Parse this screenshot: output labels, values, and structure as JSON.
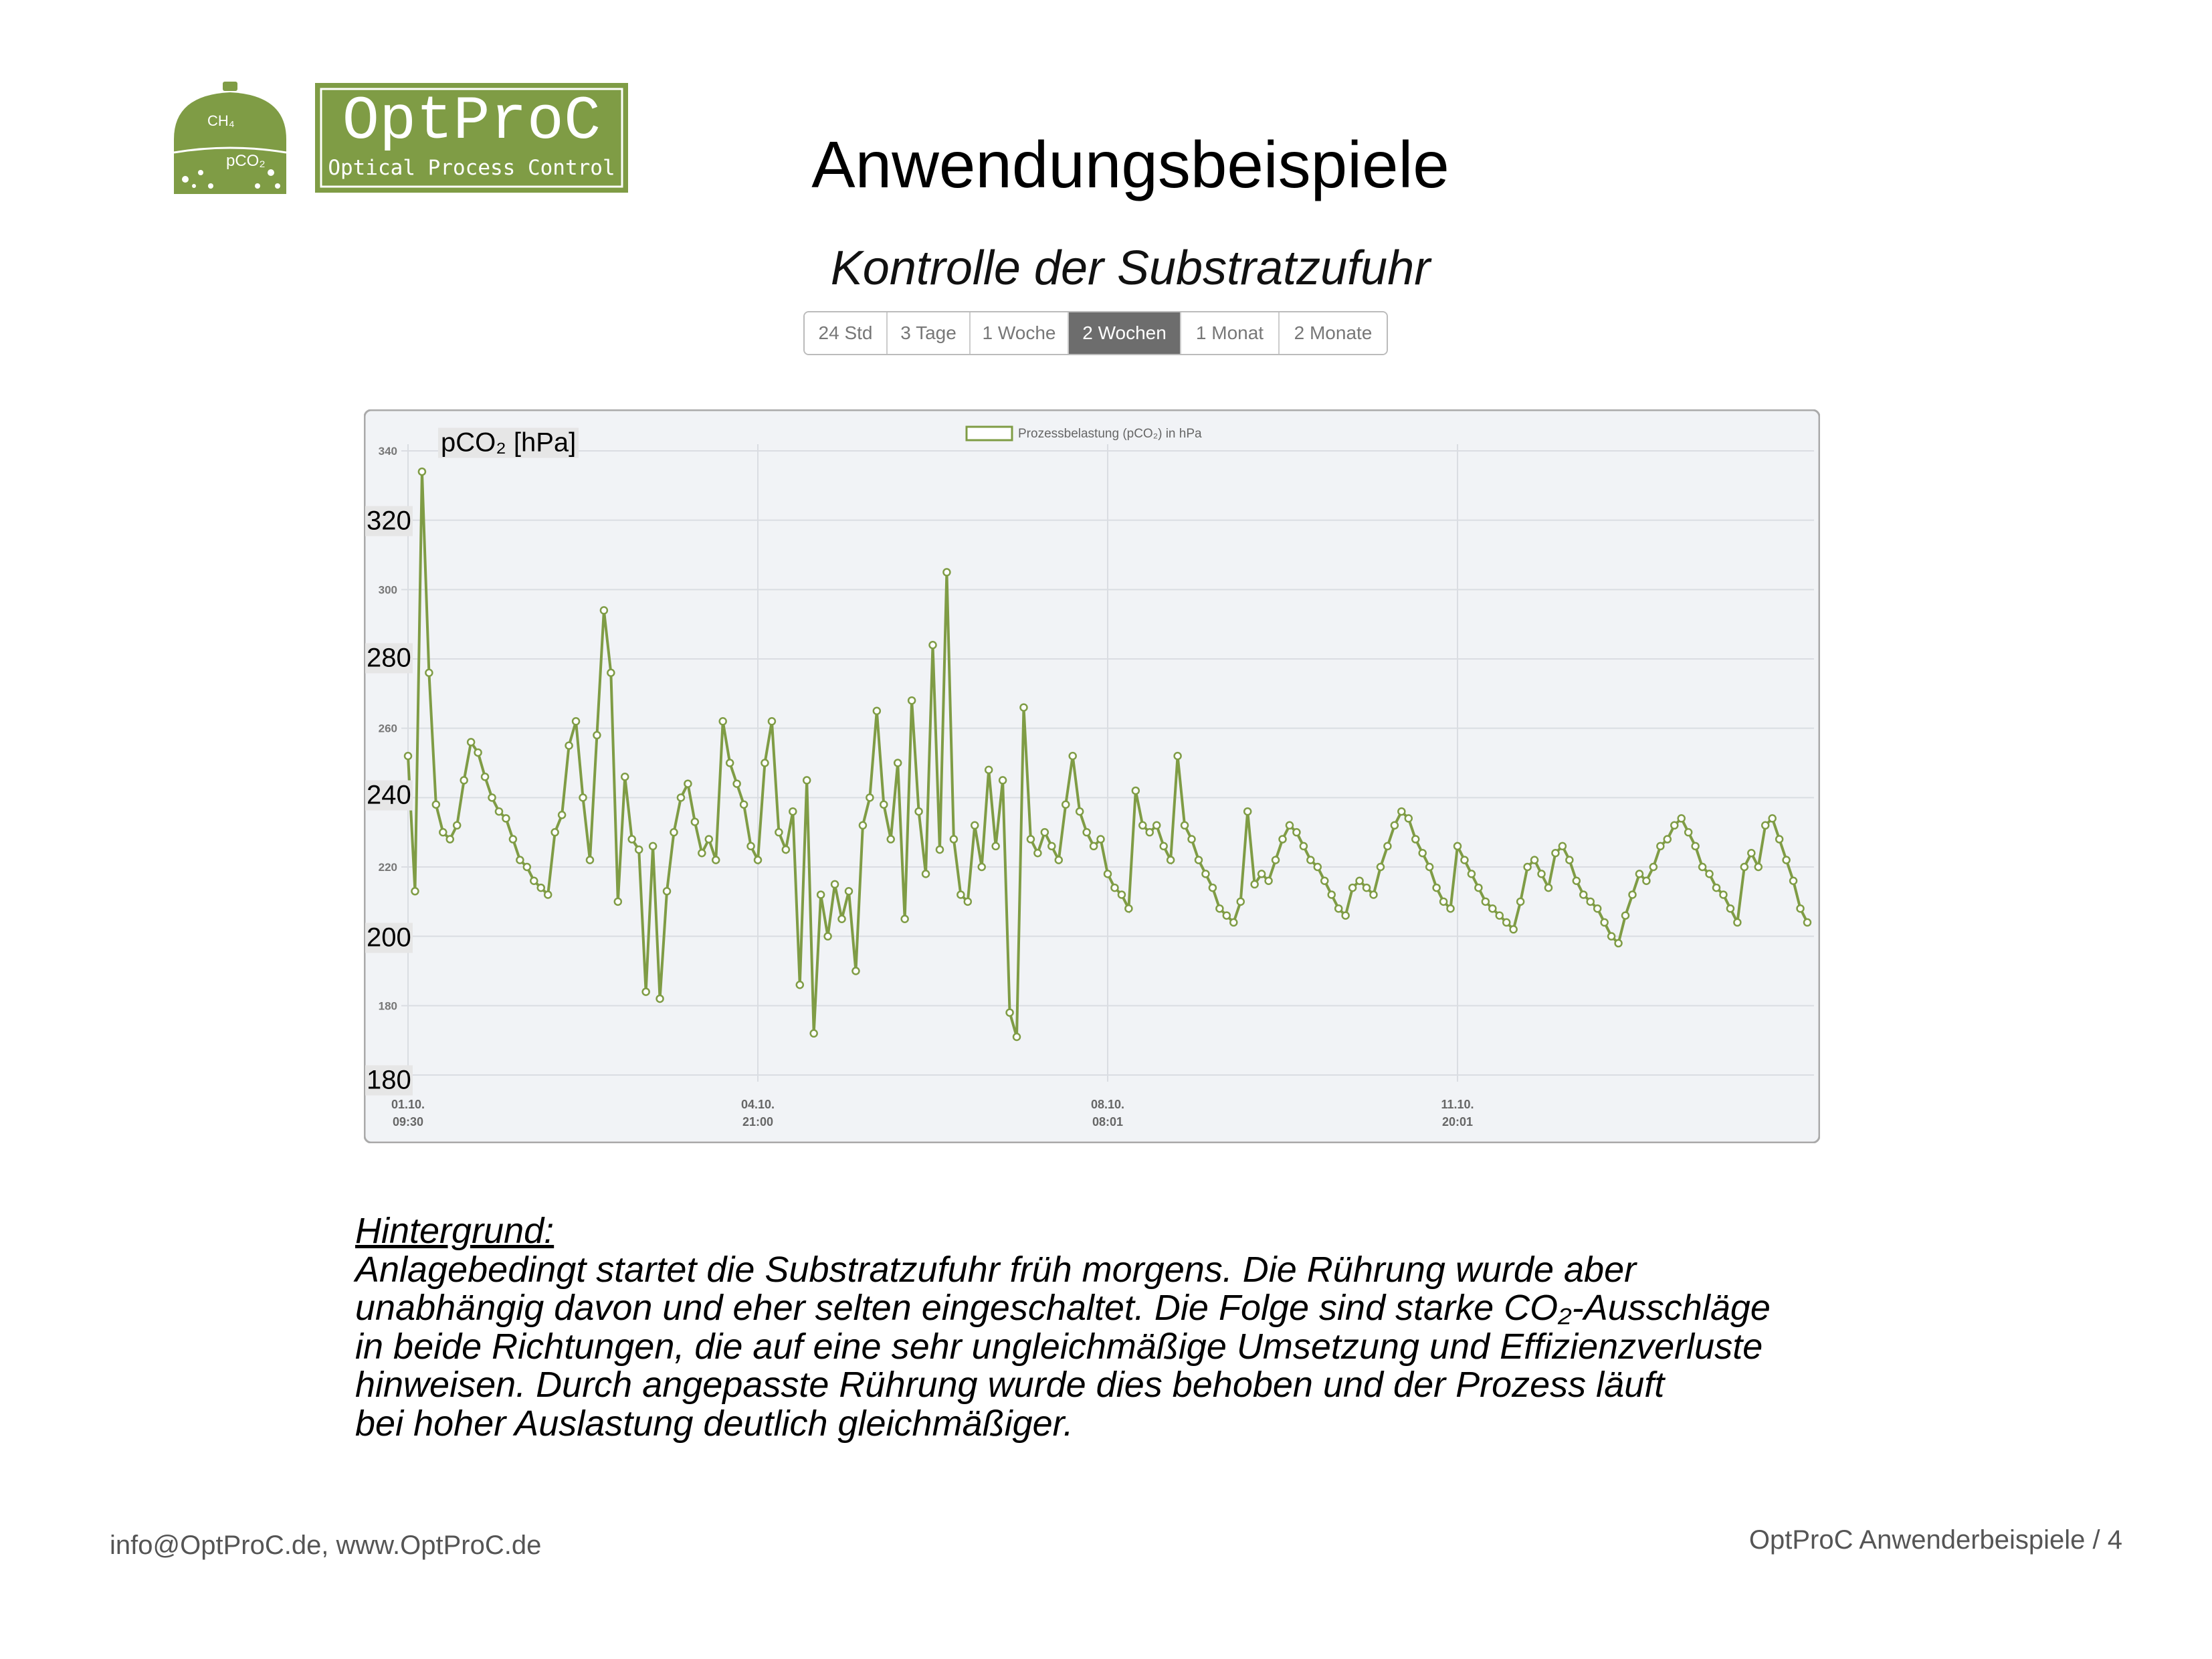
{
  "logo": {
    "tank_labels": [
      "CH₄",
      "pCO₂"
    ],
    "name": "OptProC",
    "tagline": "Optical Process Control"
  },
  "header": {
    "title": "Anwendungsbeispiele",
    "subtitle": "Kontrolle der Substratzufuhr"
  },
  "range_buttons": {
    "options": [
      "24 Std",
      "3 Tage",
      "1 Woche",
      "2 Wochen",
      "1 Monat",
      "2 Monate"
    ],
    "active_index": 3
  },
  "chart_data": {
    "type": "line",
    "y_label": "pCO₂ [hPa]",
    "overlay_ylabels": [
      "320",
      "280",
      "240",
      "200",
      "180"
    ],
    "series": [
      {
        "name": "Prozessbelastung (pCO₂) in hPa",
        "color": "#7f9c45",
        "values": [
          252,
          213,
          334,
          276,
          238,
          230,
          228,
          232,
          245,
          256,
          253,
          246,
          240,
          236,
          234,
          228,
          222,
          220,
          216,
          214,
          212,
          230,
          235,
          255,
          262,
          240,
          222,
          258,
          294,
          276,
          210,
          246,
          228,
          225,
          184,
          226,
          182,
          213,
          230,
          240,
          244,
          233,
          224,
          228,
          222,
          262,
          250,
          244,
          238,
          226,
          222,
          250,
          262,
          230,
          225,
          236,
          186,
          245,
          172,
          212,
          200,
          215,
          205,
          213,
          190,
          232,
          240,
          265,
          238,
          228,
          250,
          205,
          268,
          236,
          218,
          284,
          225,
          305,
          228,
          212,
          210,
          232,
          220,
          248,
          226,
          245,
          178,
          171,
          266,
          228,
          224,
          230,
          226,
          222,
          238,
          252,
          236,
          230,
          226,
          228,
          218,
          214,
          212,
          208,
          242,
          232,
          230,
          232,
          226,
          222,
          252,
          232,
          228,
          222,
          218,
          214,
          208,
          206,
          204,
          210,
          236,
          215,
          218,
          216,
          222,
          228,
          232,
          230,
          226,
          222,
          220,
          216,
          212,
          208,
          206,
          214,
          216,
          214,
          212,
          220,
          226,
          232,
          236,
          234,
          228,
          224,
          220,
          214,
          210,
          208,
          226,
          222,
          218,
          214,
          210,
          208,
          206,
          204,
          202,
          210,
          220,
          222,
          218,
          214,
          224,
          226,
          222,
          216,
          212,
          210,
          208,
          204,
          200,
          198,
          206,
          212,
          218,
          216,
          220,
          226,
          228,
          232,
          234,
          230,
          226,
          220,
          218,
          214,
          212,
          208,
          204,
          220,
          224,
          220,
          232,
          234,
          228,
          222,
          216,
          208,
          204
        ]
      }
    ],
    "categories": [
      "01.10.\n09:30",
      null,
      null,
      null,
      null,
      null,
      null,
      null,
      null,
      null,
      null,
      null,
      null,
      null,
      null,
      null,
      null,
      null,
      null,
      null,
      null,
      null,
      null,
      null,
      null,
      null,
      null,
      null,
      null,
      null,
      null,
      null,
      null,
      null,
      null,
      null,
      null,
      null,
      null,
      null,
      null,
      null,
      null,
      null,
      null,
      null,
      null,
      null,
      null,
      null,
      "04.10.\n21:00",
      null,
      null,
      null,
      null,
      null,
      null,
      null,
      null,
      null,
      null,
      null,
      null,
      null,
      null,
      null,
      null,
      null,
      null,
      null,
      null,
      null,
      null,
      null,
      null,
      null,
      null,
      null,
      null,
      null,
      null,
      null,
      null,
      null,
      null,
      null,
      null,
      null,
      null,
      null,
      null,
      null,
      null,
      null,
      null,
      null,
      null,
      null,
      null,
      null,
      "08.10.\n08:01",
      null,
      null,
      null,
      null,
      null,
      null,
      null,
      null,
      null,
      null,
      null,
      null,
      null,
      null,
      null,
      null,
      null,
      null,
      null,
      null,
      null,
      null,
      null,
      null,
      null,
      null,
      null,
      null,
      null,
      null,
      null,
      null,
      null,
      null,
      null,
      null,
      null,
      null,
      null,
      null,
      null,
      null,
      null,
      null,
      null,
      null,
      null,
      null,
      null,
      "11.10.\n20:01",
      null,
      null,
      null,
      null,
      null,
      null,
      null,
      null,
      null,
      null,
      null,
      null,
      null,
      null,
      null,
      null,
      null,
      null,
      null,
      null,
      null,
      null,
      null,
      null,
      null,
      null,
      null,
      null,
      null,
      null,
      null,
      null,
      null,
      null,
      null,
      null,
      null,
      null,
      null,
      null,
      null,
      null,
      null,
      null,
      null,
      null,
      null,
      null,
      null,
      null
    ],
    "ylim": [
      160,
      340
    ],
    "yticks": [
      180,
      220,
      260,
      300,
      340
    ],
    "y_grid": [
      160,
      180,
      200,
      220,
      240,
      260,
      280,
      300,
      320,
      340
    ],
    "grid": true,
    "markers": true
  },
  "text": {
    "heading": "Hintergrund:",
    "lines": [
      "Anlagebedingt startet die Substratzufuhr früh morgens. Die Rührung wurde aber",
      "unabhängig davon und eher selten eingeschaltet. Die Folge sind starke CO₂-Ausschläge",
      "in beide Richtungen, die auf eine sehr ungleichmäßige Umsetzung und Effizienzverluste",
      "hinweisen. Durch angepasste Rührung wurde dies behoben und der Prozess läuft",
      "bei hoher Auslastung deutlich gleichmäßiger."
    ]
  },
  "footer": {
    "left": "info@OptProC.de, www.OptProC.de",
    "right": "OptProC Anwenderbeispiele / 4"
  }
}
